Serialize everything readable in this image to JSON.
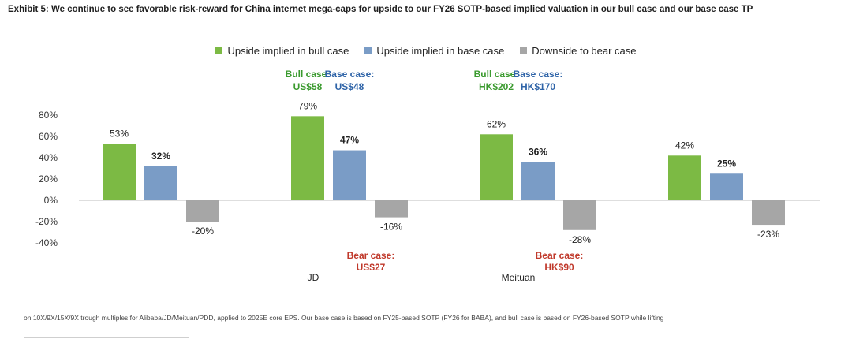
{
  "title": "Exhibit 5: We continue to see favorable risk-reward for China internet mega-caps for upside to our FY26 SOTP-based implied valuation in our bull case and our base case TP",
  "footnote": "on 10X/9X/15X/9X trough multiples for Alibaba/JD/Meituan/PDD, applied to 2025E core EPS. Our base case is based on FY25-based SOTP (FY26 for BABA), and bull case is based on FY26-based SOTP while lifting",
  "colors": {
    "bull": "#7cba44",
    "base": "#7a9cc6",
    "bear": "#a6a6a6",
    "bull_text": "#3a9a2e",
    "base_text": "#2f64a8",
    "bear_text": "#c0392b"
  },
  "chart_data": {
    "type": "bar",
    "title": "Exhibit 5: We continue to see favorable risk-reward for China internet mega-caps for upside to our FY26 SOTP-based implied valuation in our bull case and our base case TP",
    "categories": [
      "",
      "JD",
      "Meituan",
      ""
    ],
    "series": [
      {
        "name": "Upside implied in bull case",
        "values": [
          53,
          79,
          62,
          42
        ],
        "labels": [
          "53%",
          "79%",
          "62%",
          "42%"
        ]
      },
      {
        "name": "Upside implied in base case",
        "values": [
          32,
          47,
          36,
          25
        ],
        "labels": [
          "32%",
          "47%",
          "36%",
          "25%"
        ]
      },
      {
        "name": "Downside to bear case",
        "values": [
          -20,
          -16,
          -28,
          -23
        ],
        "labels": [
          "-20%",
          "-16%",
          "-28%",
          "-23%"
        ]
      }
    ],
    "y_ticks": [
      {
        "value": 80,
        "label": "80%"
      },
      {
        "value": 60,
        "label": "60%"
      },
      {
        "value": 40,
        "label": "40%"
      },
      {
        "value": 20,
        "label": "20%"
      },
      {
        "value": 0,
        "label": "0%"
      },
      {
        "value": -20,
        "label": "-20%"
      },
      {
        "value": -40,
        "label": "-40%"
      }
    ],
    "ylim": [
      -60,
      120
    ],
    "grid": false,
    "legend_position": "top-center",
    "annotations": {
      "bull_case": [
        {
          "category": 1,
          "line1": "Bull case:",
          "line2": "US$58"
        },
        {
          "category": 2,
          "line1": "Bull case:",
          "line2": "HK$202"
        }
      ],
      "base_case": [
        {
          "category": 1,
          "line1": "Base case:",
          "line2": "US$48"
        },
        {
          "category": 2,
          "line1": "Base case:",
          "line2": "HK$170"
        }
      ],
      "bear_case": [
        {
          "category": 1,
          "line1": "Bear case:",
          "line2": "US$27"
        },
        {
          "category": 2,
          "line1": "Bear case:",
          "line2": "HK$90"
        }
      ]
    }
  }
}
